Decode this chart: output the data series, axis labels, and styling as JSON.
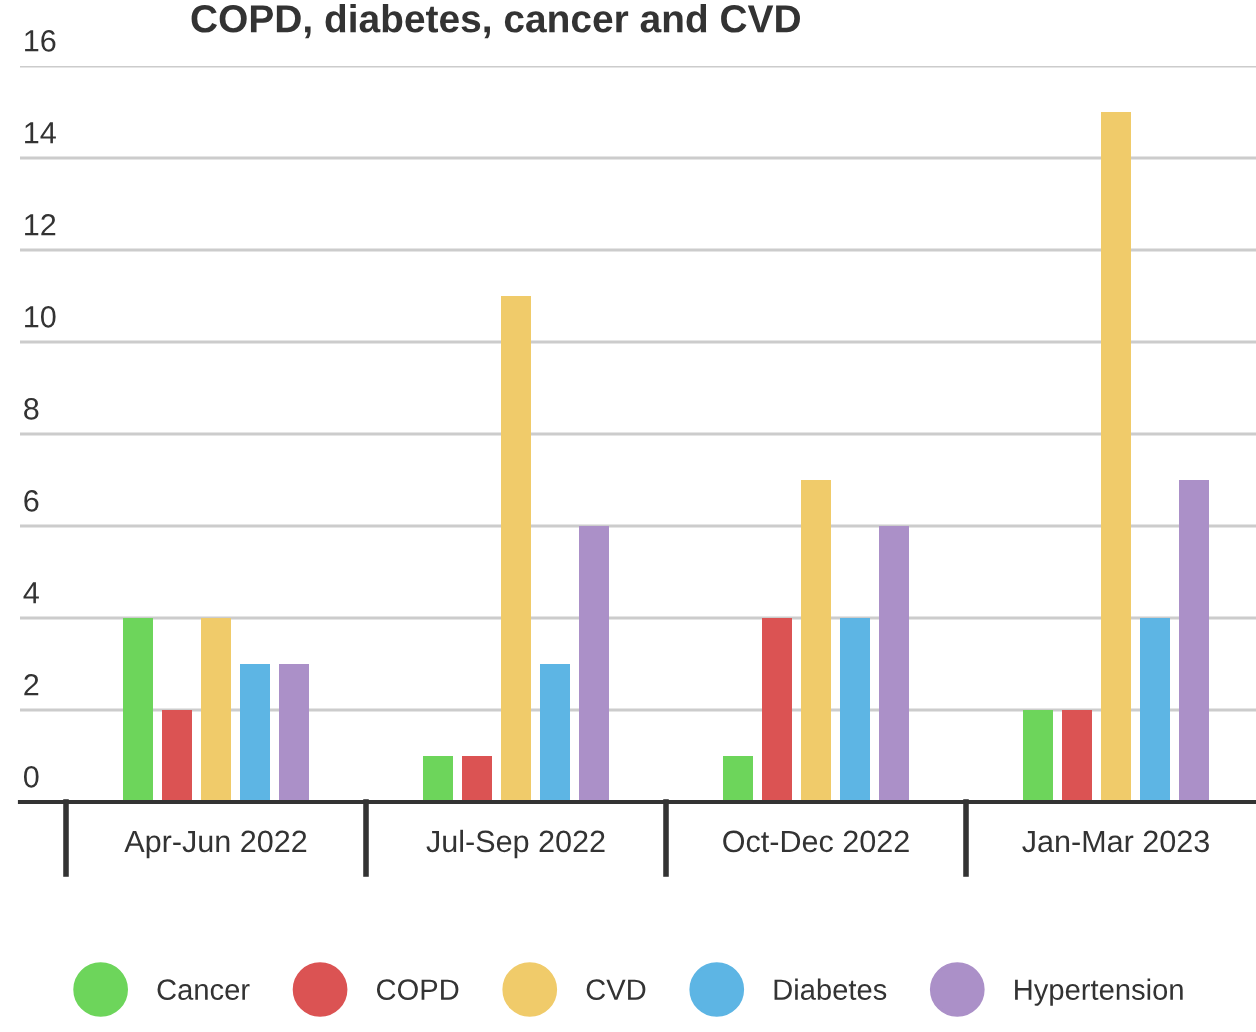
{
  "chart_data": {
    "type": "bar",
    "title": "COPD, diabetes, cancer and CVD",
    "categories": [
      "Apr-Jun 2022",
      "Jul-Sep 2022",
      "Oct-Dec 2022",
      "Jan-Mar 2023"
    ],
    "series": [
      {
        "name": "Cancer",
        "color": "#6dd55b",
        "values": [
          4,
          1,
          1,
          2
        ]
      },
      {
        "name": "COPD",
        "color": "#db5353",
        "values": [
          2,
          1,
          4,
          2
        ]
      },
      {
        "name": "CVD",
        "color": "#f0cb6a",
        "values": [
          4,
          11,
          7,
          15
        ]
      },
      {
        "name": "Diabetes",
        "color": "#5db5e4",
        "values": [
          3,
          3,
          4,
          4
        ]
      },
      {
        "name": "Hypertension",
        "color": "#ab90c8",
        "values": [
          3,
          6,
          6,
          7
        ]
      }
    ],
    "ylim": [
      0,
      16
    ],
    "yticks": [
      0,
      2,
      4,
      6,
      8,
      10,
      12,
      14,
      16
    ],
    "grid": "y",
    "legend": "bottom"
  }
}
